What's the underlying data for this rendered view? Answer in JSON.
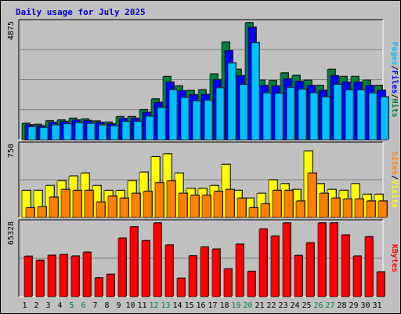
{
  "chart_data": {
    "title": "Daily usage for July 2025",
    "type": "bar",
    "categories": [
      "1",
      "2",
      "3",
      "4",
      "5",
      "6",
      "7",
      "8",
      "9",
      "10",
      "11",
      "12",
      "13",
      "14",
      "15",
      "16",
      "17",
      "18",
      "19",
      "20",
      "21",
      "22",
      "23",
      "24",
      "25",
      "26",
      "27",
      "28",
      "29",
      "30",
      "31"
    ],
    "weekend_days": [
      "5",
      "6",
      "12",
      "13",
      "19",
      "20",
      "26",
      "27"
    ],
    "colors": {
      "hits": "#008040",
      "files": "#0000ff",
      "pages": "#00c0ff",
      "visits": "#ffff00",
      "sites": "#ff8000",
      "kbytes": "#ff0000",
      "weekday_label": "#000000",
      "weekend_label": "#008040",
      "title": "#0000c8",
      "background": "#c0c0c0",
      "grid": "#808080"
    },
    "panels": [
      {
        "id": "hits-files-pages",
        "ymax": 4875,
        "ymax_label": "4875",
        "series": [
          {
            "name": "Hits",
            "color": "#008040",
            "values": [
              680,
              640,
              790,
              820,
              890,
              860,
              780,
              730,
              960,
              960,
              1250,
              1700,
              2630,
              2240,
              2050,
              2080,
              2740,
              4070,
              2930,
              5140,
              2480,
              2460,
              2780,
              2680,
              2480,
              2260,
              2930,
              2630,
              2630,
              2480,
              2260
            ]
          },
          {
            "name": "Files",
            "color": "#0000ff",
            "values": [
              620,
              580,
              720,
              760,
              820,
              800,
              720,
              660,
              880,
              890,
              1140,
              1560,
              2400,
              2040,
              1870,
              1890,
              2500,
              3710,
              2670,
              4690,
              2260,
              2240,
              2540,
              2440,
              2260,
              2060,
              2670,
              2400,
              2400,
              2260,
              2060
            ]
          },
          {
            "name": "Pages",
            "color": "#00c0ff",
            "values": [
              540,
              510,
              620,
              660,
              710,
              680,
              620,
              580,
              760,
              760,
              980,
              1340,
              2080,
              1760,
              1610,
              1640,
              2160,
              3200,
              2300,
              4040,
              1950,
              1930,
              2180,
              2100,
              1950,
              1780,
              2300,
              2070,
              2070,
              1950,
              1780
            ]
          }
        ],
        "legend": [
          "Pages",
          "/",
          "Files",
          "/",
          "Hits"
        ]
      },
      {
        "id": "visits-sites",
        "ymax": 750,
        "ymax_label": "750",
        "series": [
          {
            "name": "Visits",
            "color": "#ffff00",
            "values": [
              280,
              280,
              330,
              380,
              430,
              460,
              330,
              280,
              280,
              380,
              470,
              630,
              660,
              460,
              300,
              300,
              330,
              550,
              280,
              200,
              250,
              390,
              350,
              290,
              690,
              350,
              290,
              280,
              350,
              240,
              240
            ]
          },
          {
            "name": "Sites",
            "color": "#ff8000",
            "values": [
              100,
              110,
              210,
              290,
              280,
              280,
              160,
              220,
              200,
              250,
              270,
              360,
              380,
              250,
              230,
              230,
              270,
              290,
              200,
              100,
              140,
              280,
              280,
              170,
              460,
              250,
              200,
              190,
              190,
              170,
              170
            ]
          }
        ],
        "legend": [
          "Sites",
          "/",
          "Visits"
        ]
      },
      {
        "id": "kbytes",
        "ymax": 65328,
        "ymax_label": "65328",
        "series": [
          {
            "name": "KBytes",
            "color": "#ff0000",
            "values": [
              35800,
              32300,
              36700,
              37300,
              36000,
              39400,
              16700,
              19800,
              51900,
              61900,
              49600,
              65300,
              45800,
              16400,
              36200,
              44000,
              42200,
              24600,
              46500,
              22400,
              59900,
              53600,
              72000,
              36500,
              47700,
              66400,
              84000,
              54700,
              36000,
              53000,
              22000
            ]
          }
        ],
        "legend": [
          "KBytes"
        ]
      }
    ]
  }
}
